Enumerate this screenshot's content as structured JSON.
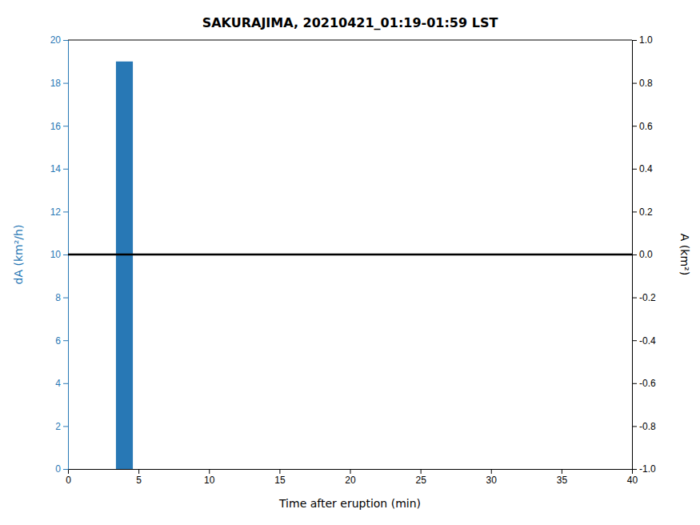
{
  "chart_data": {
    "type": "bar",
    "title": "SAKURAJIMA, 20210421_01:19-01:59 LST",
    "x_label": "Time after eruption (min)",
    "y_label": "dA (km²/h)",
    "y2_label": "A (km²)",
    "x": [
      4.0
    ],
    "values": [
      19
    ],
    "color": "#2878b5",
    "hline": 10,
    "xlim": [
      0,
      40
    ],
    "ylim": [
      0,
      20
    ],
    "y2lim": [
      -1,
      1
    ],
    "xticks": [
      0,
      5,
      10,
      15,
      20,
      25,
      30,
      35,
      40
    ],
    "yticks": [
      0,
      2,
      4,
      6,
      8,
      10,
      12,
      14,
      16,
      18,
      20
    ],
    "y2ticks": [
      {
        "value": -1,
        "label": "-1.0"
      },
      -0.8,
      -0.6,
      -0.4,
      -0.2,
      {
        "value": 0,
        "label": "0.0"
      },
      0.2,
      0.4,
      0.6,
      0.8,
      {
        "value": 1,
        "label": "1.0"
      }
    ],
    "grid": false
  }
}
